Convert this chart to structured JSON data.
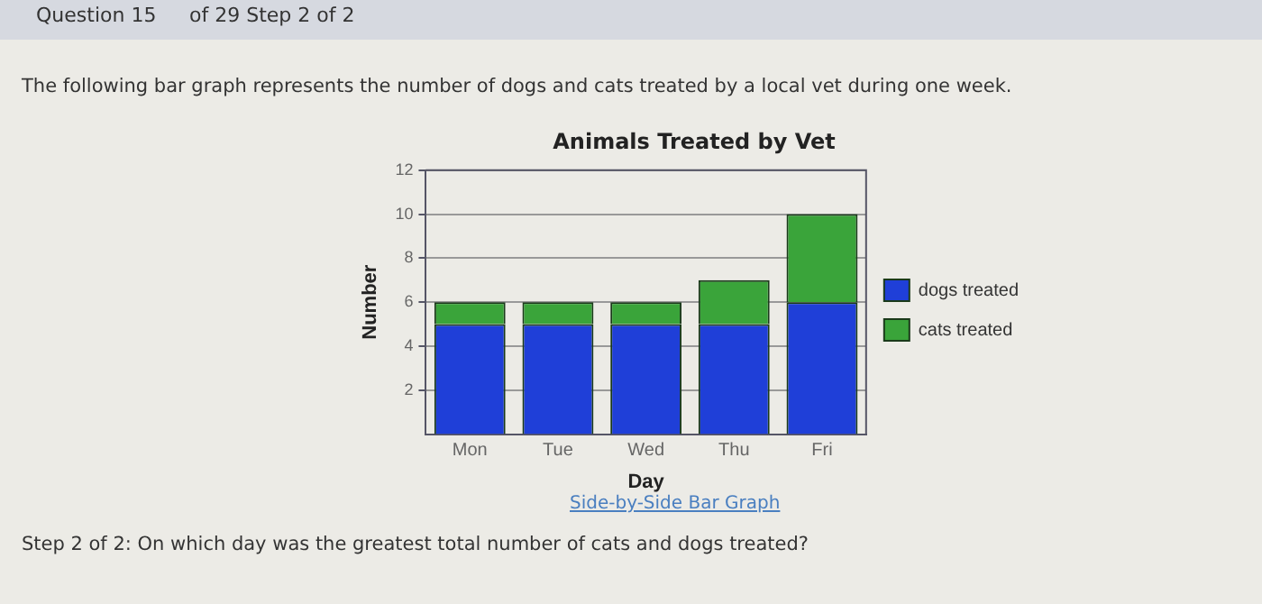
{
  "chart_data": {
    "type": "bar",
    "title": "Animals Treated by Vet",
    "xlabel": "Day",
    "ylabel": "Number",
    "categories": [
      "Mon",
      "Tue",
      "Wed",
      "Thu",
      "Fri"
    ],
    "series": [
      {
        "name": "dogs treated",
        "color": "#1f3fd8",
        "values": [
          5,
          5,
          5,
          5,
          6
        ]
      },
      {
        "name": "cats treated",
        "color": "#3aa43a",
        "values": [
          1,
          1,
          1,
          2,
          4
        ]
      }
    ],
    "stacked": true,
    "ylim": [
      0,
      12
    ],
    "yticks": [
      2,
      4,
      6,
      8,
      10,
      12
    ],
    "grid": "y",
    "legend": "right",
    "annotations": [
      "Question 15",
      "of 29 Step 2 of 2",
      "The following bar graph represents the number of dogs and cats treated by a local vet during one week.",
      "Side-by-Side Bar Graph",
      "Step 2 of 2: On which day was the greatest total number of cats and dogs treated?"
    ]
  }
}
